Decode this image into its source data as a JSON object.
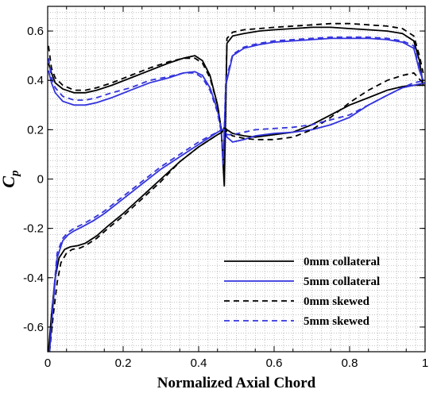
{
  "chart_data": {
    "type": "line",
    "title": "",
    "xlabel": "Normalized Axial Chord",
    "ylabel": "C",
    "ylabel_subscript": "p",
    "xlim": [
      0,
      1
    ],
    "ylim": [
      -0.7,
      0.7
    ],
    "xticks": [
      0,
      0.2,
      0.4,
      0.6,
      0.8,
      1
    ],
    "yticks": [
      -0.6,
      -0.4,
      -0.2,
      0,
      0.2,
      0.4,
      0.6
    ],
    "grid": true,
    "grid_style": "dotted-minor",
    "legend_position": "bottom-right",
    "series": [
      {
        "name": "0mm collateral",
        "color": "#000000",
        "dash": "solid",
        "x": [
          0.002,
          0.01,
          0.02,
          0.04,
          0.07,
          0.1,
          0.13,
          0.17,
          0.22,
          0.27,
          0.32,
          0.36,
          0.39,
          0.41,
          0.43,
          0.45,
          0.46,
          0.468,
          0.475,
          0.49,
          0.52,
          0.56,
          0.6,
          0.65,
          0.7,
          0.75,
          0.8,
          0.85,
          0.9,
          0.94,
          0.97,
          0.985,
          0.995,
          0.002,
          0.01,
          0.02,
          0.03,
          0.045,
          0.06,
          0.08,
          0.1,
          0.13,
          0.16,
          0.2,
          0.25,
          0.3,
          0.35,
          0.4,
          0.43,
          0.45,
          0.462,
          0.468,
          0.475,
          0.49,
          0.52,
          0.55,
          0.6,
          0.65,
          0.7,
          0.75,
          0.8,
          0.85,
          0.9,
          0.94,
          0.97,
          1.0
        ],
        "y": [
          0.47,
          0.43,
          0.39,
          0.365,
          0.35,
          0.35,
          0.36,
          0.38,
          0.41,
          0.44,
          0.47,
          0.49,
          0.5,
          0.48,
          0.42,
          0.3,
          0.2,
          -0.03,
          0.55,
          0.58,
          0.59,
          0.6,
          0.605,
          0.61,
          0.615,
          0.615,
          0.61,
          0.605,
          0.6,
          0.59,
          0.56,
          0.48,
          0.38,
          -0.7,
          -0.55,
          -0.4,
          -0.32,
          -0.285,
          -0.275,
          -0.27,
          -0.26,
          -0.23,
          -0.19,
          -0.14,
          -0.07,
          0.0,
          0.07,
          0.13,
          0.16,
          0.18,
          0.19,
          0.21,
          0.2,
          0.185,
          0.175,
          0.17,
          0.18,
          0.19,
          0.22,
          0.26,
          0.3,
          0.33,
          0.36,
          0.375,
          0.38,
          0.38
        ]
      },
      {
        "name": "5mm collateral",
        "color": "#3333dd",
        "dash": "solid",
        "x": [
          0.002,
          0.01,
          0.02,
          0.04,
          0.07,
          0.1,
          0.13,
          0.17,
          0.22,
          0.27,
          0.32,
          0.36,
          0.39,
          0.41,
          0.43,
          0.45,
          0.46,
          0.465,
          0.472,
          0.49,
          0.52,
          0.56,
          0.6,
          0.65,
          0.7,
          0.75,
          0.8,
          0.85,
          0.9,
          0.94,
          0.97,
          0.985,
          0.995,
          0.005,
          0.015,
          0.025,
          0.04,
          0.055,
          0.07,
          0.09,
          0.12,
          0.15,
          0.2,
          0.25,
          0.3,
          0.35,
          0.4,
          0.43,
          0.45,
          0.462,
          0.468,
          0.475,
          0.49,
          0.52,
          0.55,
          0.6,
          0.65,
          0.7,
          0.75,
          0.8,
          0.85,
          0.9,
          0.94,
          0.97,
          1.0
        ],
        "y": [
          0.44,
          0.39,
          0.35,
          0.315,
          0.3,
          0.3,
          0.31,
          0.33,
          0.36,
          0.39,
          0.41,
          0.43,
          0.435,
          0.42,
          0.37,
          0.28,
          0.2,
          0.05,
          0.38,
          0.5,
          0.53,
          0.545,
          0.555,
          0.56,
          0.565,
          0.57,
          0.57,
          0.57,
          0.565,
          0.555,
          0.53,
          0.44,
          0.4,
          -0.7,
          -0.5,
          -0.32,
          -0.25,
          -0.225,
          -0.21,
          -0.195,
          -0.17,
          -0.14,
          -0.08,
          -0.02,
          0.04,
          0.09,
          0.14,
          0.17,
          0.19,
          0.2,
          0.2,
          0.17,
          0.15,
          0.16,
          0.175,
          0.185,
          0.19,
          0.2,
          0.22,
          0.25,
          0.3,
          0.34,
          0.37,
          0.38,
          0.39
        ]
      },
      {
        "name": "0mm skewed",
        "color": "#000000",
        "dash": "dashed",
        "x": [
          0.002,
          0.01,
          0.02,
          0.04,
          0.07,
          0.1,
          0.13,
          0.17,
          0.22,
          0.27,
          0.32,
          0.36,
          0.39,
          0.41,
          0.43,
          0.45,
          0.46,
          0.468,
          0.475,
          0.49,
          0.52,
          0.56,
          0.6,
          0.65,
          0.7,
          0.75,
          0.8,
          0.85,
          0.9,
          0.94,
          0.97,
          0.985,
          0.995,
          0.005,
          0.015,
          0.025,
          0.035,
          0.05,
          0.065,
          0.085,
          0.1,
          0.13,
          0.16,
          0.2,
          0.25,
          0.3,
          0.35,
          0.4,
          0.43,
          0.45,
          0.462,
          0.468,
          0.475,
          0.49,
          0.52,
          0.55,
          0.6,
          0.65,
          0.7,
          0.75,
          0.8,
          0.85,
          0.9,
          0.94,
          0.97,
          1.0
        ],
        "y": [
          0.54,
          0.45,
          0.41,
          0.38,
          0.36,
          0.36,
          0.37,
          0.39,
          0.42,
          0.45,
          0.475,
          0.49,
          0.49,
          0.47,
          0.41,
          0.3,
          0.2,
          0.0,
          0.57,
          0.595,
          0.605,
          0.61,
          0.615,
          0.62,
          0.625,
          0.63,
          0.63,
          0.625,
          0.62,
          0.61,
          0.58,
          0.5,
          0.43,
          -0.7,
          -0.55,
          -0.42,
          -0.34,
          -0.3,
          -0.285,
          -0.28,
          -0.27,
          -0.24,
          -0.2,
          -0.15,
          -0.08,
          -0.01,
          0.07,
          0.13,
          0.16,
          0.18,
          0.19,
          0.21,
          0.19,
          0.175,
          0.165,
          0.16,
          0.16,
          0.17,
          0.2,
          0.25,
          0.31,
          0.36,
          0.4,
          0.42,
          0.43,
          0.38
        ]
      },
      {
        "name": "5mm skewed",
        "color": "#3333dd",
        "dash": "dashed",
        "x": [
          0.002,
          0.01,
          0.02,
          0.04,
          0.07,
          0.1,
          0.13,
          0.17,
          0.22,
          0.27,
          0.32,
          0.36,
          0.39,
          0.41,
          0.43,
          0.45,
          0.46,
          0.465,
          0.472,
          0.49,
          0.52,
          0.56,
          0.6,
          0.65,
          0.7,
          0.75,
          0.8,
          0.85,
          0.9,
          0.94,
          0.97,
          0.985,
          0.995,
          0.005,
          0.015,
          0.025,
          0.04,
          0.055,
          0.07,
          0.09,
          0.12,
          0.15,
          0.2,
          0.25,
          0.3,
          0.35,
          0.4,
          0.43,
          0.45,
          0.462,
          0.468,
          0.475,
          0.49,
          0.52,
          0.55,
          0.6,
          0.65,
          0.7,
          0.75,
          0.8,
          0.85,
          0.9,
          0.94,
          0.97,
          1.0
        ],
        "y": [
          0.49,
          0.41,
          0.37,
          0.335,
          0.32,
          0.32,
          0.33,
          0.35,
          0.37,
          0.4,
          0.415,
          0.43,
          0.43,
          0.41,
          0.36,
          0.27,
          0.19,
          0.06,
          0.4,
          0.505,
          0.535,
          0.55,
          0.56,
          0.565,
          0.57,
          0.575,
          0.575,
          0.575,
          0.57,
          0.56,
          0.54,
          0.45,
          0.4,
          -0.7,
          -0.48,
          -0.3,
          -0.24,
          -0.215,
          -0.2,
          -0.185,
          -0.16,
          -0.13,
          -0.07,
          -0.01,
          0.05,
          0.1,
          0.15,
          0.175,
          0.19,
          0.2,
          0.2,
          0.18,
          0.18,
          0.19,
          0.2,
          0.205,
          0.21,
          0.22,
          0.24,
          0.26,
          0.3,
          0.34,
          0.37,
          0.39,
          0.4
        ]
      }
    ]
  }
}
